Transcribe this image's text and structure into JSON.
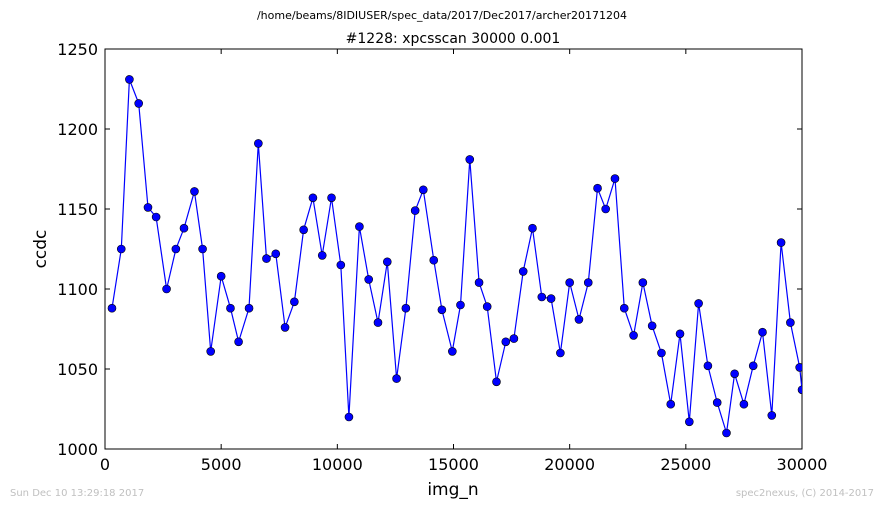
{
  "chart_data": {
    "type": "line",
    "suptitle": "/home/beams/8IDIUSER/spec_data/2017/Dec2017/archer20171204",
    "title": "#1228: xpcsscan 30000 0.001",
    "xlabel": "img_n",
    "ylabel": "ccdc",
    "xlim": [
      0,
      30000
    ],
    "ylim": [
      1000,
      1250
    ],
    "xticks": [
      0,
      5000,
      10000,
      15000,
      20000,
      25000,
      30000
    ],
    "yticks": [
      1000,
      1050,
      1100,
      1150,
      1200,
      1250
    ],
    "grid": false,
    "color": "#0000ff",
    "series": [
      {
        "x": [
          300,
          700,
          1050,
          1450,
          1850,
          2200,
          2650,
          3050,
          3400,
          3850,
          4200,
          4550,
          5000,
          5400,
          5750,
          6200,
          6600,
          6950,
          7350,
          7750,
          8150,
          8550,
          8950,
          9350,
          9750,
          10150,
          10500,
          10950,
          11350,
          11750,
          12150,
          12550,
          12950,
          13350,
          13700,
          14150,
          14500,
          14950,
          15300,
          15700,
          16100,
          16450,
          16850,
          17250,
          17600,
          18000,
          18400,
          18800,
          19200,
          19600,
          20000,
          20400,
          20800,
          21200,
          21550,
          21950,
          22350,
          22750,
          23150,
          23550,
          23950,
          24350,
          24750,
          25150,
          25550,
          25950,
          26350,
          26750,
          27100,
          27500,
          27900,
          28300,
          28700,
          29100,
          29500,
          29900,
          30000
        ],
        "y": [
          1088,
          1125,
          1231,
          1216,
          1151,
          1145,
          1100,
          1125,
          1138,
          1161,
          1125,
          1061,
          1108,
          1088,
          1067,
          1088,
          1191,
          1119,
          1122,
          1076,
          1092,
          1137,
          1157,
          1121,
          1157,
          1115,
          1020,
          1139,
          1106,
          1079,
          1117,
          1044,
          1088,
          1149,
          1162,
          1118,
          1087,
          1061,
          1090,
          1181,
          1104,
          1089,
          1042,
          1067,
          1069,
          1111,
          1138,
          1095,
          1094,
          1060,
          1104,
          1081,
          1104,
          1163,
          1150,
          1169,
          1088,
          1071,
          1104,
          1077,
          1060,
          1028,
          1072,
          1017,
          1091,
          1052,
          1029,
          1010,
          1047,
          1028,
          1052,
          1073,
          1021,
          1129,
          1079,
          1051,
          1037
        ]
      }
    ]
  },
  "footer": {
    "timestamp": "Sun Dec 10 13:29:18 2017",
    "credit": "spec2nexus, (C) 2014-2017"
  }
}
